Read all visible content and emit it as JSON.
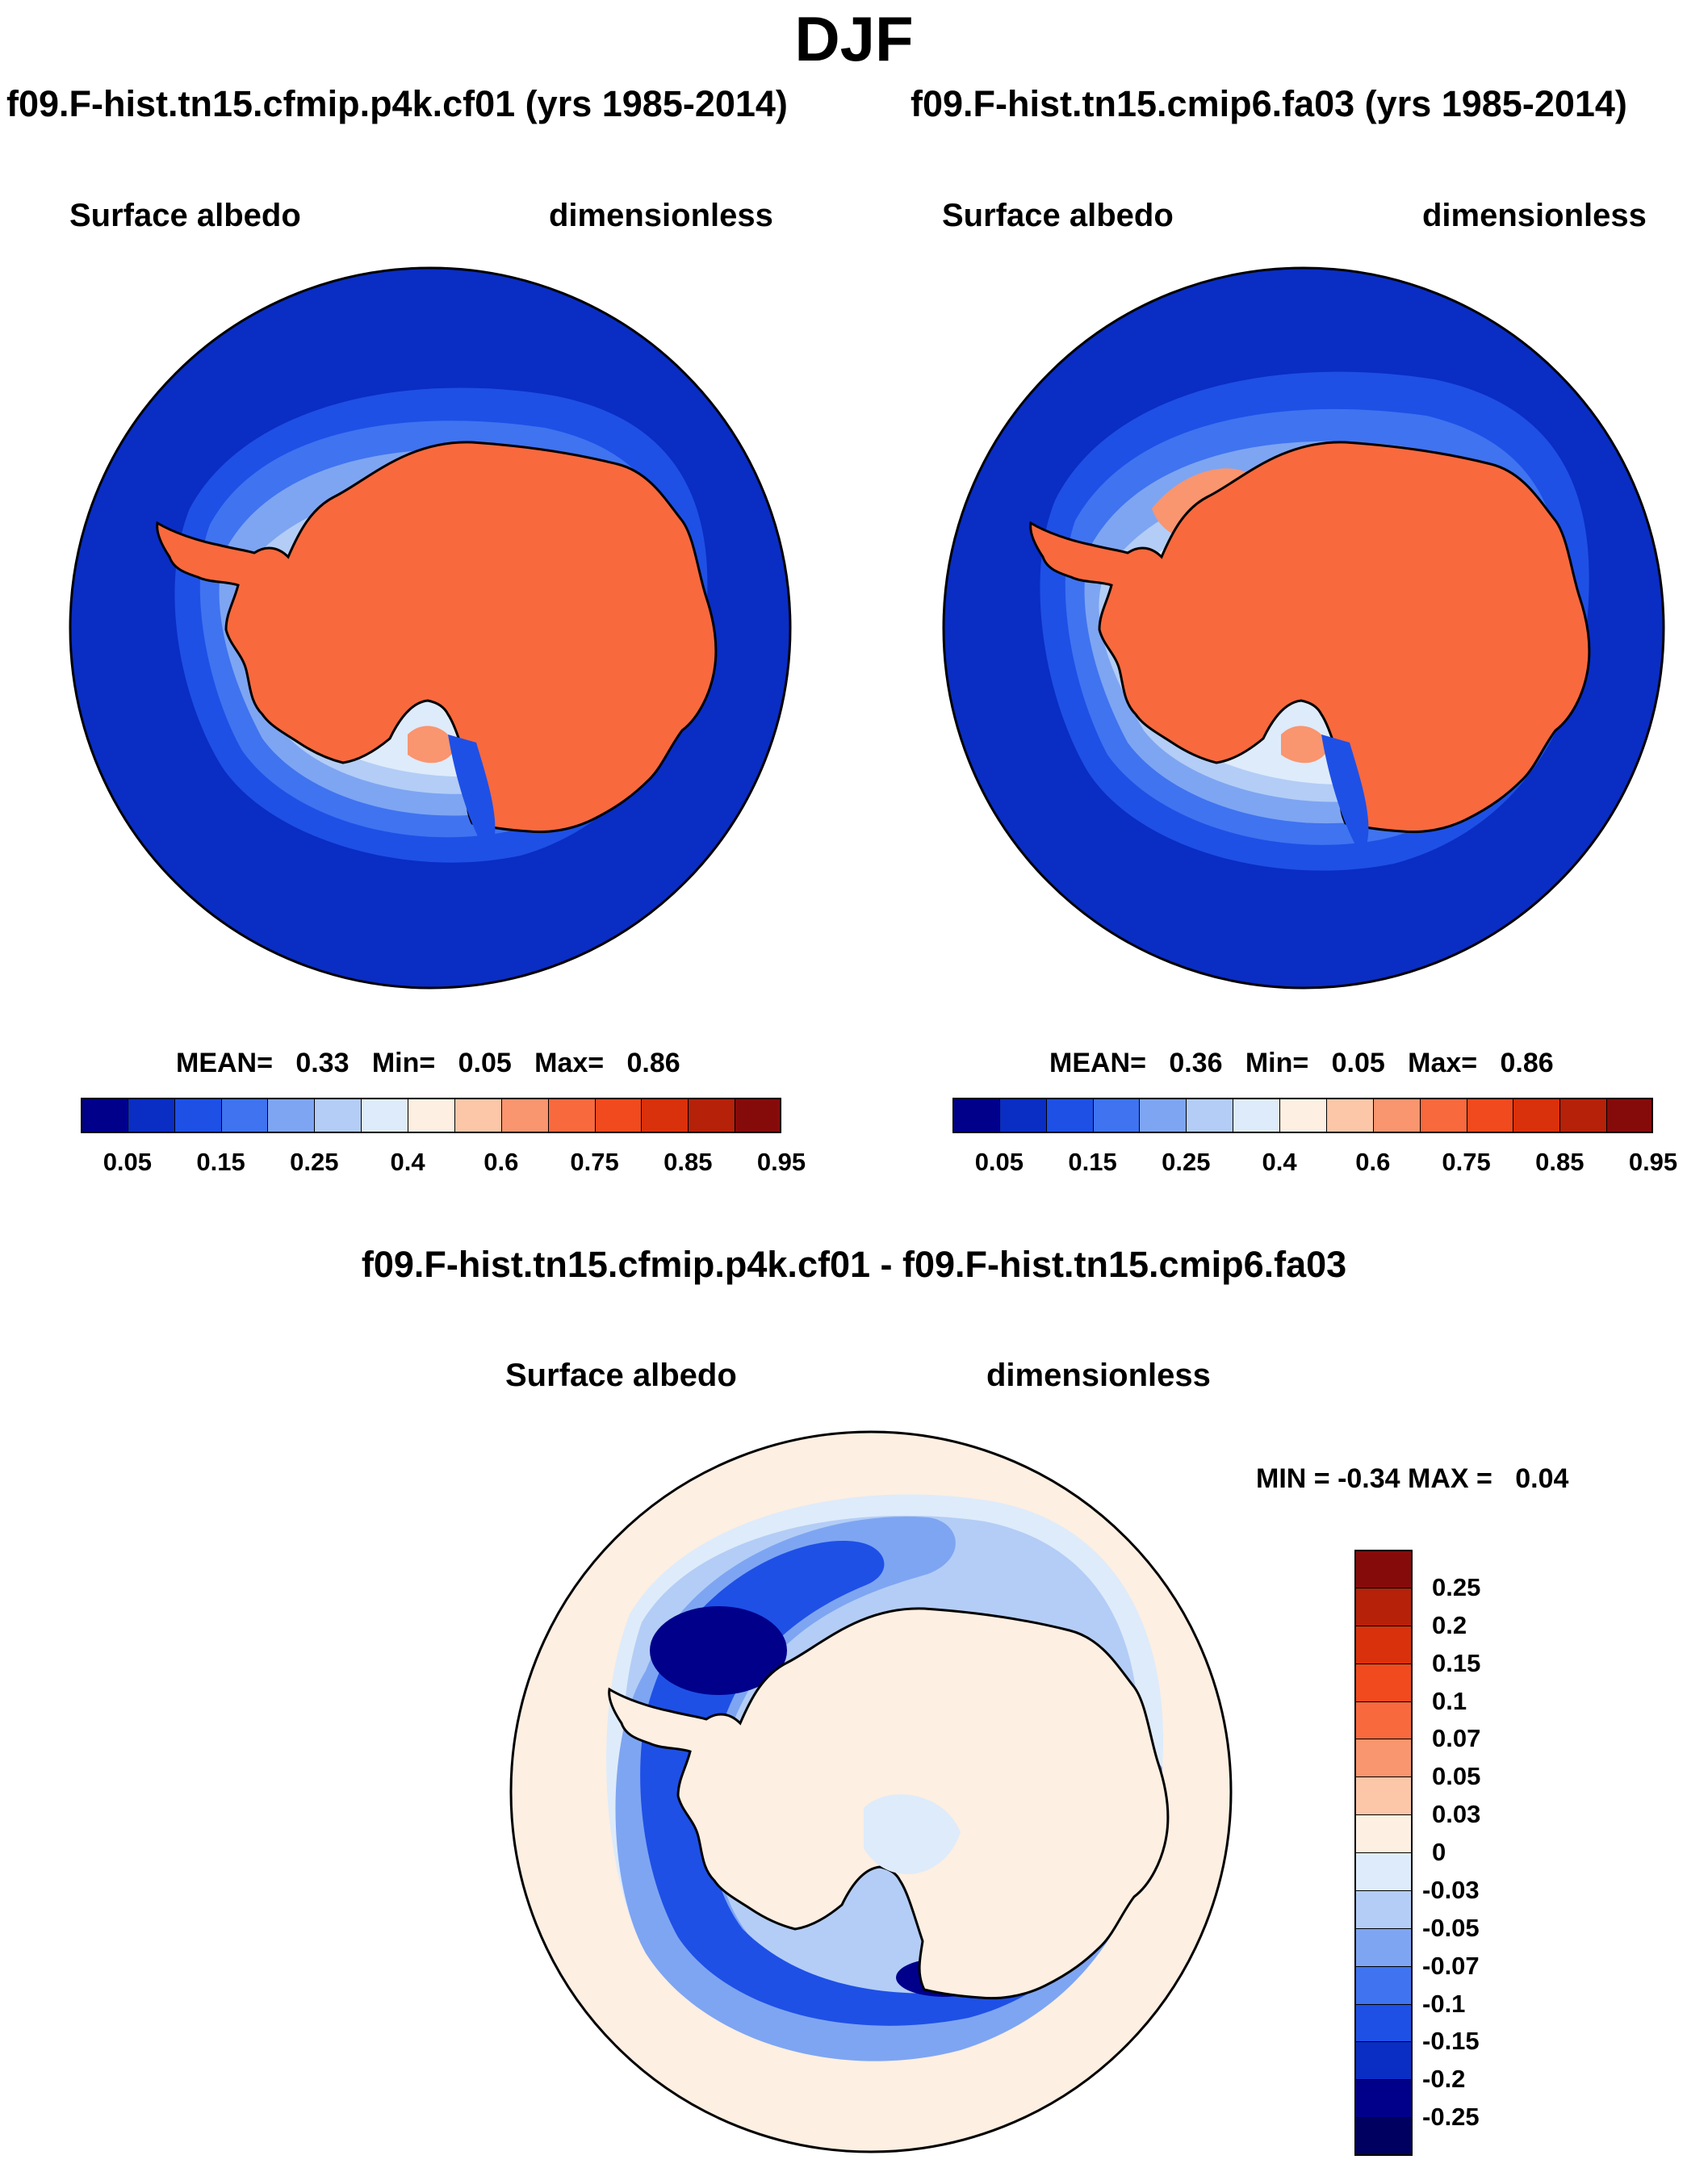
{
  "figure": {
    "title": "DJF",
    "unit": "dimensionless",
    "panels": [
      {
        "case": "f09.F-hist.tn15.cfmip.p4k.cf01 (yrs 1985-2014)",
        "field": "Surface albedo",
        "unit": "dimensionless",
        "stats": {
          "mean_label": "MEAN=",
          "mean": "0.33",
          "min_label": "Min=",
          "min": "0.05",
          "max_label": "Max=",
          "max": "0.86"
        }
      },
      {
        "case": "f09.F-hist.tn15.cmip6.fa03 (yrs 1985-2014)",
        "field": "Surface albedo",
        "unit": "dimensionless",
        "stats": {
          "mean_label": "MEAN=",
          "mean": "0.36",
          "min_label": "Min=",
          "min": "0.05",
          "max_label": "Max=",
          "max": "0.86"
        }
      }
    ],
    "diff": {
      "title": "f09.F-hist.tn15.cfmip.p4k.cf01 - f09.F-hist.tn15.cmip6.fa03",
      "field": "Surface albedo",
      "unit": "dimensionless",
      "stats": {
        "min_label": "MIN =",
        "min": "-0.34",
        "max_label": "MAX =",
        "max": "0.04"
      }
    }
  },
  "chart_data": [
    {
      "type": "heatmap",
      "projection": "south polar stereographic",
      "region": "Antarctica",
      "title": "Surface albedo",
      "unit": "dimensionless",
      "mean": 0.33,
      "min": 0.05,
      "max": 0.86,
      "colorbar": {
        "tick_labels": [
          "0.05",
          "0.15",
          "0.25",
          "0.4",
          "0.6",
          "0.75",
          "0.85",
          "0.95"
        ],
        "colors": [
          "#00008b",
          "#0a2dc4",
          "#1e50e6",
          "#3f73f0",
          "#7ea5f2",
          "#b3cdf6",
          "#deebfa",
          "#fdefe2",
          "#fcc6a8",
          "#f9956f",
          "#f8693e",
          "#f04a1e",
          "#d9310b",
          "#b52109",
          "#850b0b"
        ]
      }
    },
    {
      "type": "heatmap",
      "projection": "south polar stereographic",
      "region": "Antarctica",
      "title": "Surface albedo",
      "unit": "dimensionless",
      "mean": 0.36,
      "min": 0.05,
      "max": 0.86,
      "colorbar": {
        "tick_labels": [
          "0.05",
          "0.15",
          "0.25",
          "0.4",
          "0.6",
          "0.75",
          "0.85",
          "0.95"
        ],
        "colors": [
          "#00008b",
          "#0a2dc4",
          "#1e50e6",
          "#3f73f0",
          "#7ea5f2",
          "#b3cdf6",
          "#deebfa",
          "#fdefe2",
          "#fcc6a8",
          "#f9956f",
          "#f8693e",
          "#f04a1e",
          "#d9310b",
          "#b52109",
          "#850b0b"
        ]
      }
    },
    {
      "type": "heatmap",
      "projection": "south polar stereographic",
      "region": "Antarctica",
      "title": "Surface albedo difference",
      "unit": "dimensionless",
      "min": -0.34,
      "max": 0.04,
      "colorbar": {
        "tick_labels": [
          "0.25",
          "0.2",
          "0.15",
          "0.1",
          "0.07",
          "0.05",
          "0.03",
          "0",
          "-0.03",
          "-0.05",
          "-0.07",
          "-0.1",
          "-0.15",
          "-0.2",
          "-0.25"
        ],
        "colors": [
          "#850b0b",
          "#b52109",
          "#d9310b",
          "#f04a1e",
          "#f8693e",
          "#f9956f",
          "#fcc6a8",
          "#fdefe2",
          "#deebfa",
          "#b3cdf6",
          "#7ea5f2",
          "#3f73f0",
          "#1e50e6",
          "#0a2dc4",
          "#00008b"
        ]
      }
    }
  ]
}
